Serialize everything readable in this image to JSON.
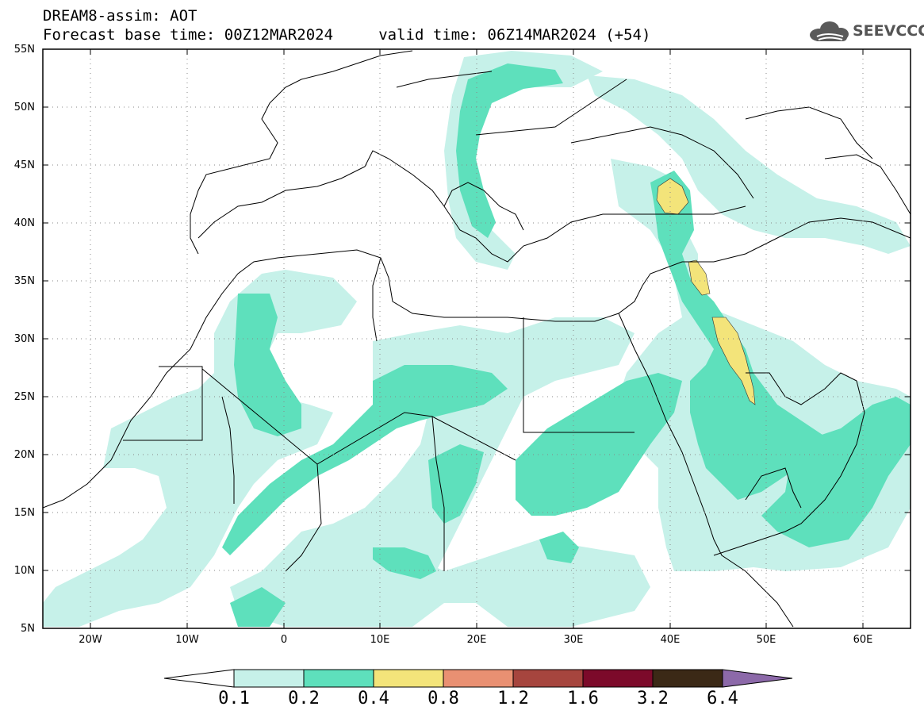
{
  "header": {
    "line1": "DREAM8-assim: AOT",
    "line2": "Forecast base time: 00Z12MAR2024     valid time: 06Z14MAR2024 (+54)",
    "logo_text": "SEEVCCC"
  },
  "map": {
    "lon_range": [
      -25,
      65
    ],
    "lat_range": [
      5,
      55
    ],
    "lat_ticks": [
      {
        "value": 55,
        "label": "55N"
      },
      {
        "value": 50,
        "label": "50N"
      },
      {
        "value": 45,
        "label": "45N"
      },
      {
        "value": 40,
        "label": "40N"
      },
      {
        "value": 35,
        "label": "35N"
      },
      {
        "value": 30,
        "label": "30N"
      },
      {
        "value": 25,
        "label": "25N"
      },
      {
        "value": 20,
        "label": "20N"
      },
      {
        "value": 15,
        "label": "15N"
      },
      {
        "value": 10,
        "label": "10N"
      },
      {
        "value": 5,
        "label": "5N"
      }
    ],
    "lon_ticks": [
      {
        "value": -20,
        "label": "20W"
      },
      {
        "value": -10,
        "label": "10W"
      },
      {
        "value": 0,
        "label": "0"
      },
      {
        "value": 10,
        "label": "10E"
      },
      {
        "value": 20,
        "label": "20E"
      },
      {
        "value": 30,
        "label": "30E"
      },
      {
        "value": 40,
        "label": "40E"
      },
      {
        "value": 50,
        "label": "50E"
      },
      {
        "value": 60,
        "label": "60E"
      }
    ],
    "grid": "dotted"
  },
  "colorbar": {
    "levels": [
      "0.1",
      "0.2",
      "0.4",
      "0.8",
      "1.2",
      "1.6",
      "3.2",
      "6.4"
    ],
    "colors": [
      "#ffffff",
      "#c6f1e9",
      "#5ee0bc",
      "#f3e47a",
      "#e99072",
      "#a6453e",
      "#7c0a2a",
      "#3b2916",
      "#8c69a9"
    ]
  }
}
